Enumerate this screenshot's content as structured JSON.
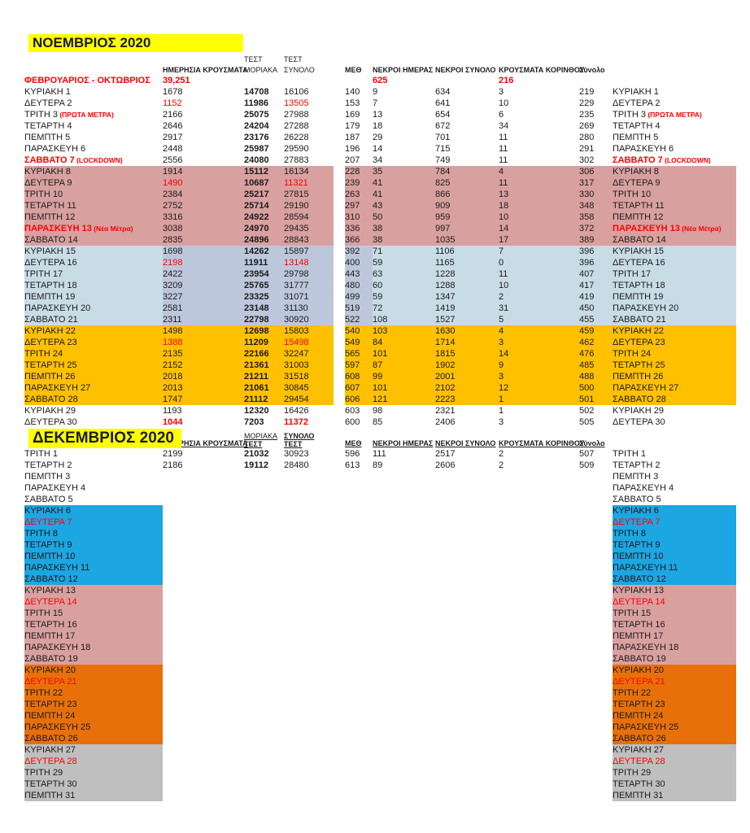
{
  "colors": {
    "yellow": "#FFFF00",
    "red": "#FF0000",
    "pink": "#D9A0A0",
    "gold": "#FFC000",
    "light_blue": "#C8DCE6",
    "lavender": "#BDC7DC",
    "cyan": "#1CA6E2",
    "orange": "#E8700A",
    "gray": "#BFBFBF"
  },
  "november": {
    "title": "ΝΟΕΜΒΡΙΟΣ 2020",
    "headers": {
      "test_small": "ΤΕΣΤ",
      "daily_cases": "ΗΜΕΡΗΣΙΑ ΚΡΟΥΣΜΑΤΑ",
      "moriaka": "ΜΟΡΙΑΚΑ",
      "synolo": "ΣΥΝΟΛΟ",
      "meth": "ΜΕΘ",
      "deaths_day": "ΝΕΚΡΟΙ ΗΜΕΡΑΣ",
      "deaths_total": "ΝΕΚΡΟΙ ΣΥΝΟΛΟ",
      "korinthos": "ΚΡΟΥΣΜΑΤΑ ΚΟΡΙΝΘΟΥ",
      "total": "Σύνολο"
    },
    "summary_row": {
      "label": "ΦΕΒΡΟΥΑΡΙΟΣ - ΟΚΤΩΒΡΙΟΣ",
      "cases": "39,251",
      "deaths": "625",
      "korinthos": "216"
    },
    "rows": [
      {
        "day": "ΚΥΡΙΑΚΗ 1",
        "cases": "1678",
        "moriaka": "14708",
        "total": "16106",
        "meth": "140",
        "deaths_day": "9",
        "deaths_total": "634",
        "korinthos": "3",
        "synolo": "219",
        "band": ""
      },
      {
        "day": "ΔΕΥΤΕΡΑ 2",
        "cases": "1152",
        "moriaka": "11986",
        "total": "13505",
        "meth": "153",
        "deaths_day": "7",
        "deaths_total": "641",
        "korinthos": "10",
        "synolo": "229",
        "band": "",
        "cases_style": "red",
        "total_style": "red"
      },
      {
        "day": "ΤΡΙΤΗ 3",
        "suffix": "(ΠΡΩΤΑ ΜΕΤΡΑ)",
        "cases": "2166",
        "moriaka": "25075",
        "total": "27988",
        "meth": "169",
        "deaths_day": "13",
        "deaths_total": "654",
        "korinthos": "6",
        "synolo": "235",
        "band": ""
      },
      {
        "day": "ΤΕΤΑΡΤΗ 4",
        "cases": "2646",
        "moriaka": "24204",
        "total": "27288",
        "meth": "179",
        "deaths_day": "18",
        "deaths_total": "672",
        "korinthos": "34",
        "synolo": "269",
        "band": ""
      },
      {
        "day": "ΠΕΜΠΤΗ 5",
        "cases": "2917",
        "moriaka": "23176",
        "total": "26228",
        "meth": "187",
        "deaths_day": "29",
        "deaths_total": "701",
        "korinthos": "11",
        "synolo": "280",
        "band": ""
      },
      {
        "day": "ΠΑΡΑΣΚΕΥΗ 6",
        "cases": "2448",
        "moriaka": "25987",
        "total": "29590",
        "meth": "196",
        "deaths_day": "14",
        "deaths_total": "715",
        "korinthos": "11",
        "synolo": "291",
        "band": ""
      },
      {
        "day": "ΣΑΒΒΑΤΟ 7",
        "suffix": "(LOCKDOWN)",
        "day_style": "red bold",
        "cases": "2556",
        "moriaka": "24080",
        "total": "27883",
        "meth": "207",
        "deaths_day": "34",
        "deaths_total": "749",
        "korinthos": "11",
        "synolo": "302",
        "band": ""
      },
      {
        "day": "ΚΥΡΙΑΚΗ 8",
        "cases": "1914",
        "moriaka": "15112",
        "total": "16134",
        "meth": "228",
        "deaths_day": "35",
        "deaths_total": "784",
        "korinthos": "4",
        "synolo": "306",
        "band": "pink"
      },
      {
        "day": "ΔΕΥΤΕΡΑ 9",
        "cases": "1490",
        "moriaka": "10687",
        "total": "11321",
        "meth": "239",
        "deaths_day": "41",
        "deaths_total": "825",
        "korinthos": "11",
        "synolo": "317",
        "band": "pink",
        "cases_style": "red",
        "total_style": "red"
      },
      {
        "day": "ΤΡΙΤΗ 10",
        "cases": "2384",
        "moriaka": "25217",
        "total": "27815",
        "meth": "263",
        "deaths_day": "41",
        "deaths_total": "866",
        "korinthos": "13",
        "synolo": "330",
        "band": "pink"
      },
      {
        "day": "ΤΕΤΑΡΤΗ 11",
        "cases": "2752",
        "moriaka": "25714",
        "total": "29190",
        "meth": "297",
        "deaths_day": "43",
        "deaths_total": "909",
        "korinthos": "18",
        "synolo": "348",
        "band": "pink"
      },
      {
        "day": "ΠΕΜΠΤΗ 12",
        "cases": "3316",
        "moriaka": "24922",
        "total": "28594",
        "meth": "310",
        "deaths_day": "50",
        "deaths_total": "959",
        "korinthos": "10",
        "synolo": "358",
        "band": "pink"
      },
      {
        "day": "ΠΑΡΑΣΚΕΥΗ 13",
        "suffix": "(Νέα Μέτρα)",
        "day_style": "red bold",
        "cases": "3038",
        "moriaka": "24970",
        "total": "29435",
        "meth": "336",
        "deaths_day": "38",
        "deaths_total": "997",
        "korinthos": "14",
        "synolo": "372",
        "band": "pink"
      },
      {
        "day": "ΣΑΒΒΑΤΟ 14",
        "cases": "2835",
        "moriaka": "24896",
        "total": "28843",
        "meth": "366",
        "deaths_day": "38",
        "deaths_total": "1035",
        "korinthos": "17",
        "synolo": "389",
        "band": "pink"
      },
      {
        "day": "ΚΥΡΙΑΚΗ 15",
        "cases": "1698",
        "moriaka": "14262",
        "total": "15897",
        "meth": "392",
        "deaths_day": "71",
        "deaths_total": "1106",
        "korinthos": "7",
        "synolo": "396",
        "band": "blue"
      },
      {
        "day": "ΔΕΥΤΕΡΑ 16",
        "cases": "2198",
        "moriaka": "11911",
        "total": "13148",
        "meth": "400",
        "deaths_day": "59",
        "deaths_total": "1165",
        "korinthos": "0",
        "synolo": "396",
        "band": "blue",
        "cases_style": "red",
        "total_style": "red"
      },
      {
        "day": "ΤΡΙΤΗ 17",
        "cases": "2422",
        "moriaka": "23954",
        "total": "29798",
        "meth": "443",
        "deaths_day": "63",
        "deaths_total": "1228",
        "korinthos": "11",
        "synolo": "407",
        "band": "blue"
      },
      {
        "day": "ΤΕΤΑΡΤΗ 18",
        "cases": "3209",
        "moriaka": "25765",
        "total": "31777",
        "meth": "480",
        "deaths_day": "60",
        "deaths_total": "1288",
        "korinthos": "10",
        "synolo": "417",
        "band": "blue"
      },
      {
        "day": "ΠΕΜΠΤΗ 19",
        "cases": "3227",
        "moriaka": "23325",
        "total": "31071",
        "meth": "499",
        "deaths_day": "59",
        "deaths_total": "1347",
        "korinthos": "2",
        "synolo": "419",
        "band": "blue"
      },
      {
        "day": "ΠΑΡΑΣΚΕΥΗ 20",
        "cases": "2581",
        "moriaka": "23148",
        "total": "31130",
        "meth": "519",
        "deaths_day": "72",
        "deaths_total": "1419",
        "korinthos": "31",
        "synolo": "450",
        "band": "blue"
      },
      {
        "day": "ΣΑΒΒΑΤΟ 21",
        "cases": "2311",
        "moriaka": "22798",
        "total": "30920",
        "meth": "522",
        "deaths_day": "108",
        "deaths_total": "1527",
        "korinthos": "5",
        "synolo": "455",
        "band": "blue"
      },
      {
        "day": "ΚΥΡΙΑΚΗ 22",
        "cases": "1498",
        "moriaka": "12698",
        "total": "15803",
        "meth": "540",
        "deaths_day": "103",
        "deaths_total": "1630",
        "korinthos": "4",
        "synolo": "459",
        "band": "gold"
      },
      {
        "day": "ΔΕΥΤΕΡΑ 23",
        "cases": "1388",
        "moriaka": "11209",
        "total": "15498",
        "meth": "549",
        "deaths_day": "84",
        "deaths_total": "1714",
        "korinthos": "3",
        "synolo": "462",
        "band": "gold",
        "cases_style": "red",
        "total_style": "red"
      },
      {
        "day": "ΤΡΙΤΗ 24",
        "cases": "2135",
        "moriaka": "22166",
        "total": "32247",
        "meth": "565",
        "deaths_day": "101",
        "deaths_total": "1815",
        "korinthos": "14",
        "synolo": "476",
        "band": "gold"
      },
      {
        "day": "ΤΕΤΑΡΤΗ 25",
        "cases": "2152",
        "moriaka": "21361",
        "total": "31003",
        "meth": "597",
        "deaths_day": "87",
        "deaths_total": "1902",
        "korinthos": "9",
        "synolo": "485",
        "band": "gold"
      },
      {
        "day": "ΠΕΜΠΤΗ 26",
        "cases": "2018",
        "moriaka": "21211",
        "total": "31518",
        "meth": "608",
        "deaths_day": "99",
        "deaths_total": "2001",
        "korinthos": "3",
        "synolo": "488",
        "band": "gold"
      },
      {
        "day": "ΠΑΡΑΣΚΕΥΗ 27",
        "cases": "2013",
        "moriaka": "21061",
        "total": "30845",
        "meth": "607",
        "deaths_day": "101",
        "deaths_total": "2102",
        "korinthos": "12",
        "synolo": "500",
        "band": "gold"
      },
      {
        "day": "ΣΑΒΒΑΤΟ 28",
        "cases": "1747",
        "moriaka": "21112",
        "total": "29454",
        "meth": "606",
        "deaths_day": "121",
        "deaths_total": "2223",
        "korinthos": "1",
        "synolo": "501",
        "band": "gold"
      },
      {
        "day": "ΚΥΡΙΑΚΗ 29",
        "cases": "1193",
        "moriaka": "12320",
        "total": "16426",
        "meth": "603",
        "deaths_day": "98",
        "deaths_total": "2321",
        "korinthos": "1",
        "synolo": "502",
        "band": ""
      },
      {
        "day": "ΔΕΥΤΕΡΑ 30",
        "cases": "1044",
        "moriaka": "7203",
        "total": "11372",
        "meth": "600",
        "deaths_day": "85",
        "deaths_total": "2406",
        "korinthos": "3",
        "synolo": "505",
        "band": "",
        "cases_style": "red bold",
        "total_style": "red bold"
      }
    ]
  },
  "december": {
    "title": "ΔΕΚΕΜΒΡΙΟΣ 2020",
    "headers": {
      "daily_cases": "ΗΜΕΡΗΣΙΑ ΚΡΟΥΣΜΑΤΑ",
      "moriaka_line1": "ΜΟΡΙΑΚΑ",
      "moriaka_line2": "ΤΕΣΤ",
      "synolo_line1": "ΣΥΝΟΛΟ",
      "synolo_line2": "ΤΕΣΤ",
      "meth": "ΜΕΘ",
      "deaths_day": "ΝΕΚΡΟΙ ΗΜΕΡΑΣ",
      "deaths_total": "ΝΕΚΡΟΙ ΣΥΝΟΛΟ",
      "korinthos": "ΚΡΟΥΣΜΑΤΑ ΚΟΡΙΝΘΟΥ",
      "total": "Σύνολο"
    },
    "rows": [
      {
        "day": "ΤΡΙΤΗ 1",
        "cases": "2199",
        "moriaka": "21032",
        "total": "30923",
        "meth": "596",
        "deaths_day": "111",
        "deaths_total": "2517",
        "korinthos": "2",
        "synolo": "507",
        "band": ""
      },
      {
        "day": "ΤΕΤΑΡΤΗ 2",
        "cases": "2186",
        "moriaka": "19112",
        "total": "28480",
        "meth": "613",
        "deaths_day": "89",
        "deaths_total": "2606",
        "korinthos": "2",
        "synolo": "509",
        "band": ""
      },
      {
        "day": "ΠΕΜΠΤΗ 3",
        "band": ""
      },
      {
        "day": "ΠΑΡΑΣΚΕΥΗ 4",
        "band": ""
      },
      {
        "day": "ΣΑΒΒΑΤΟ 5",
        "band": ""
      },
      {
        "day": "ΚΥΡΙΑΚΗ 6",
        "band": "cyan"
      },
      {
        "day": "ΔΕΥΤΕΡΑ 7",
        "band": "cyan",
        "day_style": "red"
      },
      {
        "day": "ΤΡΙΤΗ 8",
        "band": "cyan"
      },
      {
        "day": "ΤΕΤΑΡΤΗ 9",
        "band": "cyan"
      },
      {
        "day": "ΠΕΜΠΤΗ 10",
        "band": "cyan"
      },
      {
        "day": "ΠΑΡΑΣΚΕΥΗ 11",
        "band": "cyan"
      },
      {
        "day": "ΣΑΒΒΑΤΟ 12",
        "band": "cyan"
      },
      {
        "day": "ΚΥΡΙΑΚΗ 13",
        "band": "pink"
      },
      {
        "day": "ΔΕΥΤΕΡΑ 14",
        "band": "pink",
        "day_style": "red"
      },
      {
        "day": "ΤΡΙΤΗ 15",
        "band": "pink"
      },
      {
        "day": "ΤΕΤΑΡΤΗ 16",
        "band": "pink"
      },
      {
        "day": "ΠΕΜΠΤΗ 17",
        "band": "pink"
      },
      {
        "day": "ΠΑΡΑΣΚΕΥΗ 18",
        "band": "pink"
      },
      {
        "day": "ΣΑΒΒΑΤΟ 19",
        "band": "pink"
      },
      {
        "day": "ΚΥΡΙΑΚΗ 20",
        "band": "orange"
      },
      {
        "day": "ΔΕΥΤΕΡΑ 21",
        "band": "orange",
        "day_style": "red"
      },
      {
        "day": "ΤΡΙΤΗ 22",
        "band": "orange"
      },
      {
        "day": "ΤΕΤΑΡΤΗ 23",
        "band": "orange"
      },
      {
        "day": "ΠΕΜΠΤΗ 24",
        "band": "orange"
      },
      {
        "day": "ΠΑΡΑΣΚΕΥΗ 25",
        "band": "orange"
      },
      {
        "day": "ΣΑΒΒΑΤΟ 26",
        "band": "orange"
      },
      {
        "day": "ΚΥΡΙΑΚΗ 27",
        "band": "gray"
      },
      {
        "day": "ΔΕΥΤΕΡΑ 28",
        "band": "gray",
        "day_style": "red"
      },
      {
        "day": "ΤΡΙΤΗ 29",
        "band": "gray"
      },
      {
        "day": "ΤΕΤΑΡΤΗ 30",
        "band": "gray"
      },
      {
        "day": "ΠΕΜΠΤΗ 31",
        "band": "gray"
      }
    ]
  }
}
